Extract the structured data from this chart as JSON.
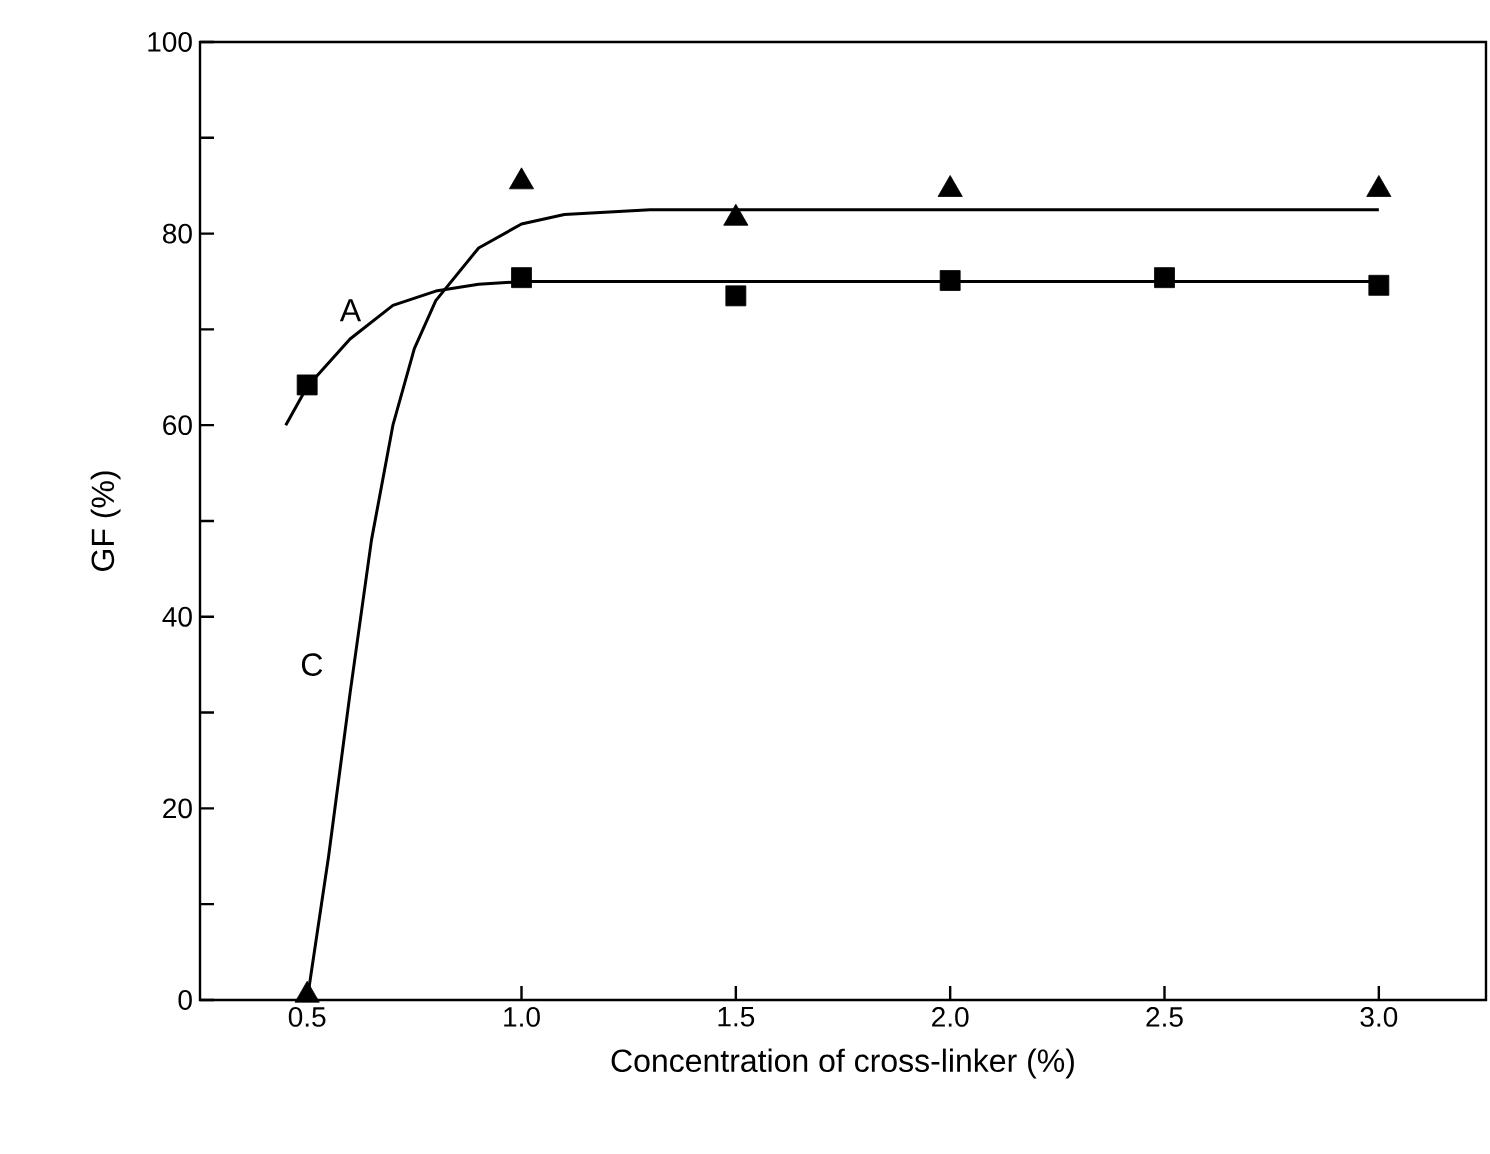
{
  "chart_data": {
    "type": "scatter",
    "xlabel": "Concentration of cross-linker    (%)",
    "ylabel": "GF    (%)",
    "xlim": [
      0.25,
      3.25
    ],
    "ylim": [
      0,
      100
    ],
    "xticks": [
      {
        "value": 0.5,
        "label": "0.5"
      },
      {
        "value": 1,
        "label": "1.0"
      },
      {
        "value": 1.5,
        "label": "1.5"
      },
      {
        "value": 2,
        "label": "2.0"
      },
      {
        "value": 2.5,
        "label": "2.5"
      },
      {
        "value": 3,
        "label": "3.0"
      }
    ],
    "yticks": [
      0,
      {
        "value": 10,
        "label": null
      },
      20,
      {
        "value": 30,
        "label": null
      },
      40,
      {
        "value": 50,
        "label": null
      },
      60,
      {
        "value": 70,
        "label": null
      },
      80,
      {
        "value": 90,
        "label": null
      },
      100
    ],
    "series": [
      {
        "type": "line",
        "color": "#000000",
        "marker": "none",
        "line_style": "solid",
        "x": [
          0.45,
          0.5,
          0.6,
          0.7,
          0.8,
          0.9,
          1.0,
          3.0
        ],
        "values": [
          60,
          64,
          69,
          72.5,
          74,
          74.7,
          75,
          75
        ]
      },
      {
        "type": "line",
        "color": "#000000",
        "marker": "none",
        "line_style": "solid",
        "x": [
          0.5,
          0.55,
          0.6,
          0.65,
          0.7,
          0.75,
          0.8,
          0.9,
          1.0,
          1.1,
          1.3,
          3.0
        ],
        "values": [
          0,
          15,
          32,
          48,
          60,
          68,
          73,
          78.5,
          81,
          82,
          82.5,
          82.5
        ]
      },
      {
        "color": "#000000",
        "marker": "square",
        "x": [
          0.5,
          1.0,
          1.5,
          2.0,
          2.5,
          3.0
        ],
        "values": [
          64.2,
          75.4,
          73.5,
          75.1,
          75.4,
          74.6
        ]
      },
      {
        "color": "#000000",
        "marker": "triangle",
        "x": [
          0.5,
          1.0,
          1.5,
          2.0,
          3.0
        ],
        "values": [
          0.5,
          85.4,
          81.6,
          84.6,
          84.6
        ]
      }
    ],
    "annotations": [
      "A",
      "C"
    ]
  }
}
